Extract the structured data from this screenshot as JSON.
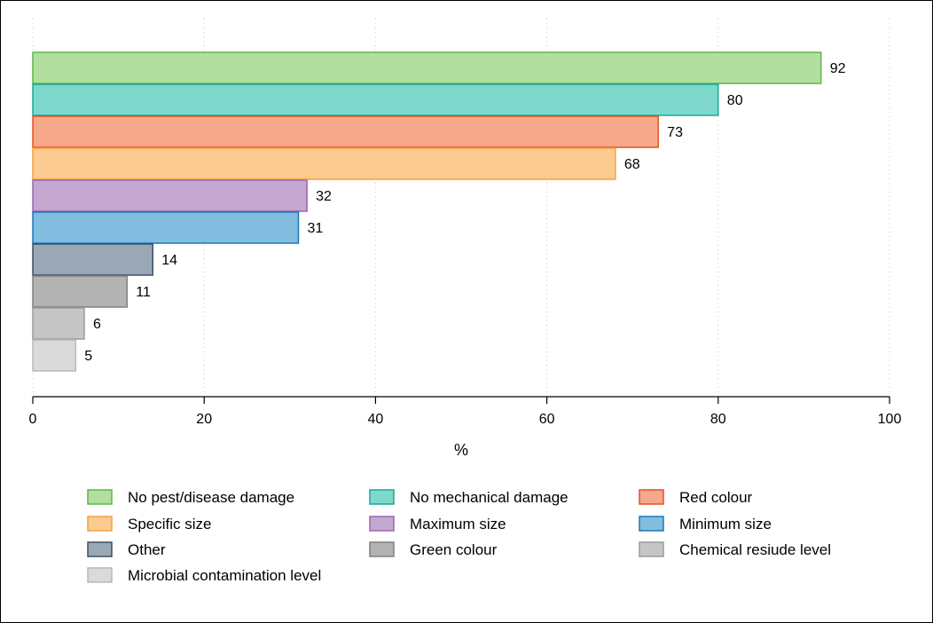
{
  "chart_data": {
    "type": "bar",
    "orientation": "horizontal",
    "categories": [
      "No pest/disease damage",
      "No mechanical damage",
      "Red colour",
      "Specific size",
      "Maximum size",
      "Minimum size",
      "Other",
      "Green colour",
      "Chemical resiude level",
      "Microbial contamination level"
    ],
    "values": [
      92,
      80,
      73,
      68,
      32,
      31,
      14,
      11,
      6,
      5
    ],
    "value_labels": [
      "92",
      "80",
      "73",
      "68",
      "32",
      "31",
      "14",
      "11",
      "6",
      "5"
    ],
    "fill_colors": [
      "#b2dfa0",
      "#7fd8cc",
      "#f6a88a",
      "#fbcb91",
      "#c4a8d0",
      "#82bde0",
      "#9aa8b6",
      "#b3b3b3",
      "#c6c6c6",
      "#dadada"
    ],
    "stroke_colors": [
      "#5bb845",
      "#1aa89a",
      "#e2531f",
      "#f5a23a",
      "#9966b0",
      "#1b78b8",
      "#3d4f63",
      "#808080",
      "#9c9c9c",
      "#b8b8b8"
    ],
    "xlabel": "%",
    "ylabel": "",
    "title": "",
    "xlim": [
      0,
      100
    ],
    "xticks": [
      0,
      20,
      40,
      60,
      80,
      100
    ],
    "xtick_labels": [
      "0",
      "20",
      "40",
      "60",
      "80",
      "100"
    ],
    "grid": "vertical dotted",
    "legend_placement": "bottom",
    "legend_columns": 3
  }
}
